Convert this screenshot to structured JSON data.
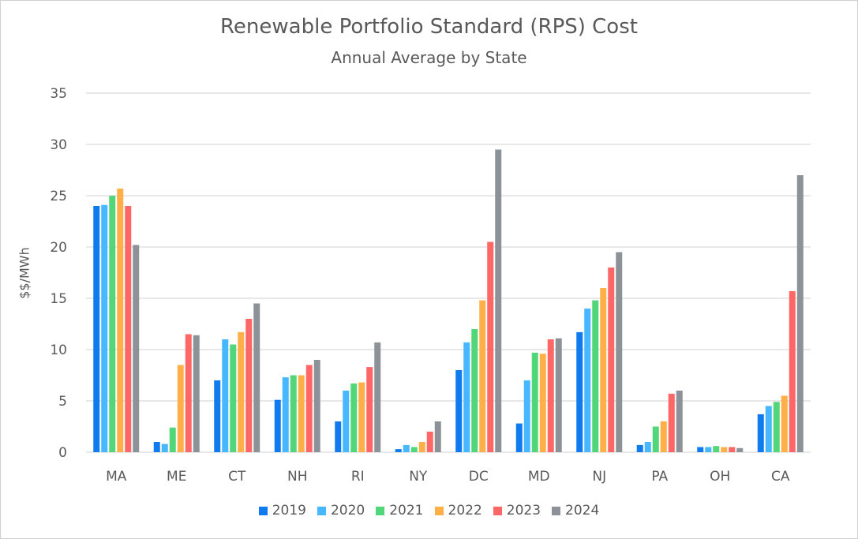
{
  "chart_data": {
    "type": "bar",
    "title": "Renewable Portfolio Standard (RPS) Cost",
    "subtitle": "Annual Average by State",
    "xlabel": "",
    "ylabel": "$$/MWh",
    "ylim": [
      0,
      35
    ],
    "yticks": [
      0,
      5,
      10,
      15,
      20,
      25,
      30,
      35
    ],
    "grid": true,
    "legend_position": "bottom",
    "categories": [
      "MA",
      "ME",
      "CT",
      "NH",
      "RI",
      "NY",
      "DC",
      "MD",
      "NJ",
      "PA",
      "OH",
      "CA"
    ],
    "series": [
      {
        "name": "2019",
        "color": "#0f7bef",
        "values": [
          24.0,
          1.0,
          7.0,
          5.1,
          3.0,
          0.3,
          8.0,
          2.8,
          11.7,
          0.7,
          0.5,
          3.7
        ]
      },
      {
        "name": "2020",
        "color": "#47b8ff",
        "values": [
          24.1,
          0.8,
          11.0,
          7.3,
          6.0,
          0.7,
          10.7,
          7.0,
          14.0,
          1.0,
          0.5,
          4.5
        ]
      },
      {
        "name": "2021",
        "color": "#52d67a",
        "values": [
          25.0,
          2.4,
          10.5,
          7.5,
          6.7,
          0.5,
          12.0,
          9.7,
          14.8,
          2.5,
          0.6,
          4.9
        ]
      },
      {
        "name": "2022",
        "color": "#ffaf48",
        "values": [
          25.7,
          8.5,
          11.7,
          7.5,
          6.8,
          1.0,
          14.8,
          9.6,
          16.0,
          3.0,
          0.5,
          5.5
        ]
      },
      {
        "name": "2023",
        "color": "#ff6666",
        "values": [
          24.0,
          11.5,
          13.0,
          8.5,
          8.3,
          2.0,
          20.5,
          11.0,
          18.0,
          5.7,
          0.5,
          15.7
        ]
      },
      {
        "name": "2024",
        "color": "#8c9298",
        "values": [
          20.2,
          11.4,
          14.5,
          9.0,
          10.7,
          3.0,
          29.5,
          11.1,
          19.5,
          6.0,
          0.4,
          27.0
        ]
      }
    ]
  }
}
